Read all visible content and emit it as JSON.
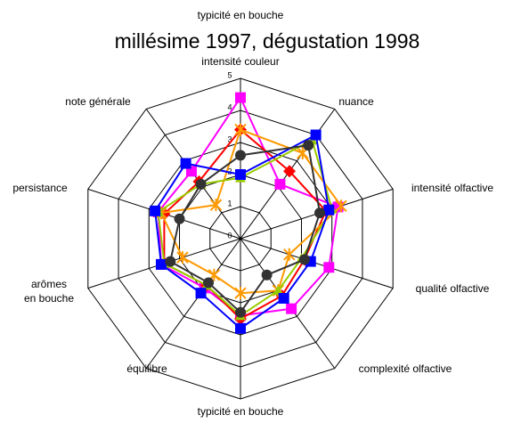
{
  "chart_data": {
    "type": "radar",
    "subtitle": "typicité en bouche",
    "title": "millésime 1997, dégustation 1998",
    "categories": [
      "intensité couleur",
      "nuance",
      "intensité olfactive",
      "qualité olfactive",
      "complexité olfactive",
      "typicité en bouche",
      "équilibre",
      "arômes\nen bouche",
      "persistance",
      "note générale"
    ],
    "rlim": [
      0,
      5
    ],
    "rticks": [
      0,
      1,
      2,
      3,
      4,
      5
    ],
    "grid": true,
    "series": [
      {
        "color": "#ff00ff",
        "marker": "square",
        "values": [
          4.4,
          2.1,
          3.2,
          2.9,
          2.7,
          2.4,
          1.9,
          2.6,
          2.7,
          2.6
        ]
      },
      {
        "color": "#ff0000",
        "marker": "diamond",
        "values": [
          3.4,
          2.6,
          2.8,
          2.1,
          2.2,
          2.5,
          1.8,
          2.5,
          2.5,
          2.2
        ]
      },
      {
        "color": "#ff9900",
        "marker": "star",
        "values": [
          3.4,
          3.3,
          3.3,
          1.6,
          2.0,
          1.7,
          1.4,
          1.9,
          2.6,
          1.3
        ]
      },
      {
        "color": "#99cc00",
        "marker": "triangle",
        "values": [
          1.9,
          3.8,
          3.0,
          2.0,
          2.0,
          2.4,
          1.8,
          2.5,
          2.7,
          2.1
        ]
      },
      {
        "color": "#0000ff",
        "marker": "square",
        "values": [
          2.0,
          4.0,
          2.9,
          2.3,
          2.3,
          2.8,
          2.1,
          2.6,
          2.8,
          2.9
        ]
      },
      {
        "color": "#333333",
        "marker": "circle",
        "values": [
          2.6,
          3.6,
          2.6,
          2.1,
          1.4,
          2.3,
          1.7,
          2.3,
          2.0,
          2.1
        ]
      }
    ]
  }
}
